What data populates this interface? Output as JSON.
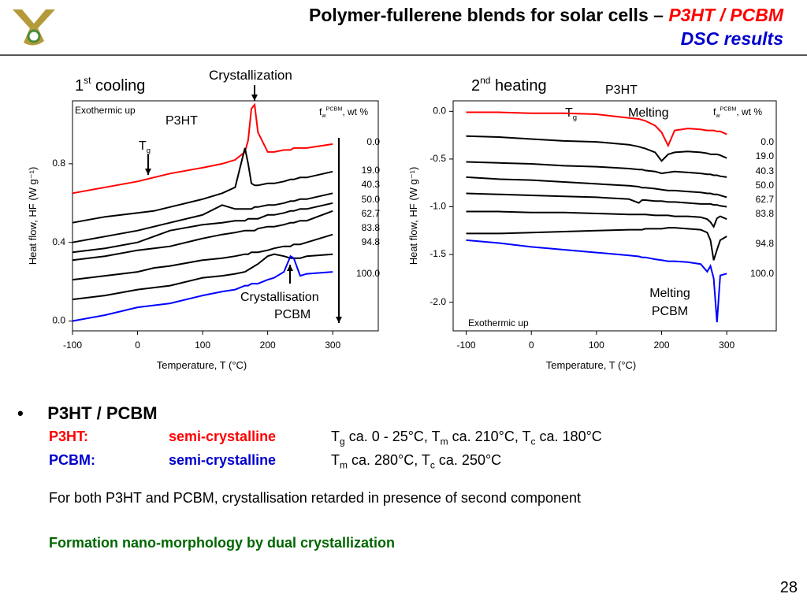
{
  "header": {
    "title": "Polymer-fullerene blends for solar cells – ",
    "title_highlight": "P3HT / PCBM",
    "subtitle": "DSC results"
  },
  "chart_data": [
    {
      "type": "line",
      "title": {
        "text": "1",
        "sup": "st",
        "after": " cooling"
      },
      "xlabel": "Temperature, T (°C)",
      "ylabel": "Heat flow, HF (W g⁻¹)",
      "xlim": [
        -100,
        370
      ],
      "ylim": [
        -0.05,
        1.12
      ],
      "xticks": [
        -100,
        0,
        100,
        200,
        300
      ],
      "yticks": [
        {
          "value": 0,
          "label": "0.0"
        },
        {
          "value": 0.4,
          "label": "0.4"
        },
        {
          "value": 0.8,
          "label": "0.8"
        }
      ],
      "legend_title": {
        "text": "f",
        "sub": "w",
        "sup": "PCBM",
        "after": ", wt %"
      },
      "annotations": [
        {
          "text": "Crystallization"
        },
        {
          "text": "Exothermic up"
        },
        {
          "text": "P3HT"
        },
        {
          "text": "T",
          "sub": "g"
        },
        {
          "text": "Crystallisation"
        },
        {
          "text": "PCBM"
        }
      ],
      "x": [
        -100,
        -50,
        0,
        25,
        50,
        100,
        130,
        150,
        165,
        170,
        175,
        180,
        185,
        200,
        210,
        225,
        235,
        240,
        250,
        260,
        300
      ],
      "series": [
        {
          "name": "0.0",
          "color": "#ff0000",
          "values": [
            0.65,
            0.68,
            0.71,
            0.73,
            0.75,
            0.78,
            0.8,
            0.82,
            0.86,
            0.92,
            1.08,
            1.1,
            0.96,
            0.86,
            0.86,
            0.87,
            0.87,
            0.88,
            0.88,
            0.88,
            0.9
          ]
        },
        {
          "name": "19.0",
          "color": "#000000",
          "values": [
            0.5,
            0.53,
            0.55,
            0.56,
            0.58,
            0.62,
            0.65,
            0.68,
            0.88,
            0.8,
            0.7,
            0.69,
            0.69,
            0.7,
            0.7,
            0.71,
            0.72,
            0.72,
            0.73,
            0.73,
            0.76
          ]
        },
        {
          "name": "40.3",
          "color": "#000000",
          "values": [
            0.4,
            0.43,
            0.46,
            0.48,
            0.5,
            0.54,
            0.59,
            0.57,
            0.57,
            0.57,
            0.57,
            0.58,
            0.58,
            0.59,
            0.59,
            0.6,
            0.61,
            0.61,
            0.62,
            0.62,
            0.65
          ]
        },
        {
          "name": "50.0",
          "color": "#000000",
          "values": [
            0.35,
            0.37,
            0.4,
            0.43,
            0.46,
            0.49,
            0.5,
            0.51,
            0.51,
            0.52,
            0.52,
            0.52,
            0.52,
            0.54,
            0.54,
            0.55,
            0.56,
            0.56,
            0.57,
            0.57,
            0.6
          ]
        },
        {
          "name": "62.7",
          "color": "#000000",
          "values": [
            0.31,
            0.33,
            0.36,
            0.37,
            0.38,
            0.42,
            0.44,
            0.45,
            0.46,
            0.46,
            0.46,
            0.46,
            0.47,
            0.48,
            0.48,
            0.49,
            0.5,
            0.5,
            0.51,
            0.51,
            0.56
          ]
        },
        {
          "name": "83.8",
          "color": "#000000",
          "values": [
            0.21,
            0.23,
            0.25,
            0.27,
            0.28,
            0.31,
            0.32,
            0.33,
            0.34,
            0.34,
            0.35,
            0.35,
            0.35,
            0.36,
            0.37,
            0.38,
            0.38,
            0.39,
            0.39,
            0.4,
            0.44
          ]
        },
        {
          "name": "94.8",
          "color": "#000000",
          "values": [
            0.11,
            0.13,
            0.16,
            0.17,
            0.18,
            0.22,
            0.23,
            0.24,
            0.25,
            0.26,
            0.27,
            0.28,
            0.29,
            0.33,
            0.34,
            0.33,
            0.32,
            0.32,
            0.32,
            0.33,
            0.34
          ]
        },
        {
          "name": "100.0",
          "color": "#0000ff",
          "values": [
            0.0,
            0.03,
            0.07,
            0.08,
            0.09,
            0.13,
            0.15,
            0.16,
            0.18,
            0.18,
            0.19,
            0.19,
            0.19,
            0.21,
            0.22,
            0.25,
            0.33,
            0.32,
            0.23,
            0.24,
            0.25
          ]
        }
      ]
    },
    {
      "type": "line",
      "title": {
        "text": "2",
        "sup": "nd",
        "after": " heating"
      },
      "xlabel": "Temperature, T (°C)",
      "ylabel": "Heat flow, HF (W g⁻¹)",
      "xlim": [
        -120,
        376
      ],
      "ylim": [
        -2.3,
        0.11
      ],
      "xticks": [
        -100,
        0,
        100,
        200,
        300
      ],
      "yticks": [
        {
          "value": 0,
          "label": "0.0"
        },
        -0.5,
        {
          "value": -1,
          "label": "-1.0"
        },
        -1.5,
        {
          "value": -2,
          "label": "-2.0"
        }
      ],
      "legend_title": {
        "text": "f",
        "sub": "w",
        "sup": "PCBM",
        "after": ", wt %"
      },
      "annotations": [
        {
          "text": "P3HT"
        },
        {
          "text": "T",
          "sub": "g"
        },
        {
          "text": "Melting"
        },
        {
          "text": "Exothermic up"
        },
        {
          "text": "Melting"
        },
        {
          "text": "PCBM"
        }
      ],
      "x": [
        -100,
        -50,
        0,
        50,
        100,
        150,
        165,
        170,
        175,
        190,
        200,
        210,
        220,
        240,
        260,
        270,
        275,
        280,
        285,
        290,
        300
      ],
      "series": [
        {
          "name": "0.0",
          "color": "#ff0000",
          "values": [
            -0.01,
            -0.01,
            -0.02,
            -0.02,
            -0.03,
            -0.07,
            -0.08,
            -0.09,
            -0.1,
            -0.15,
            -0.22,
            -0.36,
            -0.2,
            -0.18,
            -0.19,
            -0.2,
            -0.2,
            -0.2,
            -0.21,
            -0.21,
            -0.24
          ]
        },
        {
          "name": "19.0",
          "color": "#000000",
          "values": [
            -0.26,
            -0.27,
            -0.29,
            -0.31,
            -0.32,
            -0.35,
            -0.37,
            -0.38,
            -0.39,
            -0.43,
            -0.52,
            -0.45,
            -0.43,
            -0.42,
            -0.43,
            -0.44,
            -0.45,
            -0.45,
            -0.45,
            -0.46,
            -0.49
          ]
        },
        {
          "name": "40.3",
          "color": "#000000",
          "values": [
            -0.53,
            -0.54,
            -0.55,
            -0.57,
            -0.58,
            -0.6,
            -0.61,
            -0.61,
            -0.62,
            -0.63,
            -0.65,
            -0.64,
            -0.63,
            -0.64,
            -0.65,
            -0.66,
            -0.66,
            -0.67,
            -0.67,
            -0.68,
            -0.69
          ]
        },
        {
          "name": "50.0",
          "color": "#000000",
          "values": [
            -0.69,
            -0.71,
            -0.72,
            -0.74,
            -0.76,
            -0.78,
            -0.79,
            -0.8,
            -0.8,
            -0.81,
            -0.82,
            -0.83,
            -0.83,
            -0.84,
            -0.85,
            -0.86,
            -0.86,
            -0.87,
            -0.87,
            -0.88,
            -0.9
          ]
        },
        {
          "name": "62.7",
          "color": "#000000",
          "values": [
            -0.86,
            -0.87,
            -0.88,
            -0.89,
            -0.9,
            -0.92,
            -0.96,
            -0.93,
            -0.93,
            -0.94,
            -0.94,
            -0.95,
            -0.95,
            -0.96,
            -0.97,
            -0.97,
            -0.97,
            -0.98,
            -0.98,
            -0.99,
            -1.0
          ]
        },
        {
          "name": "83.8",
          "color": "#000000",
          "values": [
            -1.05,
            -1.05,
            -1.06,
            -1.06,
            -1.07,
            -1.08,
            -1.08,
            -1.08,
            -1.08,
            -1.09,
            -1.09,
            -1.09,
            -1.1,
            -1.1,
            -1.11,
            -1.13,
            -1.16,
            -1.21,
            -1.12,
            -1.1,
            -1.13
          ]
        },
        {
          "name": "94.8",
          "color": "#000000",
          "values": [
            -1.28,
            -1.28,
            -1.27,
            -1.26,
            -1.25,
            -1.24,
            -1.24,
            -1.24,
            -1.23,
            -1.23,
            -1.23,
            -1.22,
            -1.22,
            -1.23,
            -1.24,
            -1.27,
            -1.35,
            -1.56,
            -1.45,
            -1.35,
            -1.31
          ]
        },
        {
          "name": "100.0",
          "color": "#0000ff",
          "values": [
            -1.35,
            -1.38,
            -1.42,
            -1.45,
            -1.48,
            -1.51,
            -1.52,
            -1.53,
            -1.53,
            -1.55,
            -1.56,
            -1.57,
            -1.57,
            -1.58,
            -1.6,
            -1.68,
            -1.62,
            -1.75,
            -2.21,
            -1.72,
            -1.7
          ]
        }
      ]
    }
  ],
  "content": {
    "bullet": "P3HT / PCBM",
    "rows": [
      {
        "label": "P3HT:",
        "type": "semi-crystalline",
        "desc": [
          {
            "t": "T"
          },
          {
            "sub": "g"
          },
          {
            "t": " ca. 0 - 25°C, T"
          },
          {
            "sub": "m"
          },
          {
            "t": " ca. 210°C, T"
          },
          {
            "sub": "c"
          },
          {
            "t": " ca. 180°C"
          }
        ]
      },
      {
        "label": "PCBM:",
        "type": "semi-crystalline",
        "desc": [
          {
            "t": "T"
          },
          {
            "sub": "m"
          },
          {
            "t": " ca. 280°C, T"
          },
          {
            "sub": "c"
          },
          {
            "t": " ca. 250°C"
          }
        ]
      }
    ],
    "note": "For both P3HT and PCBM, crystallisation retarded in presence of second component",
    "conclusion": "Formation nano-morphology by dual crystallization"
  },
  "page_number": "28"
}
